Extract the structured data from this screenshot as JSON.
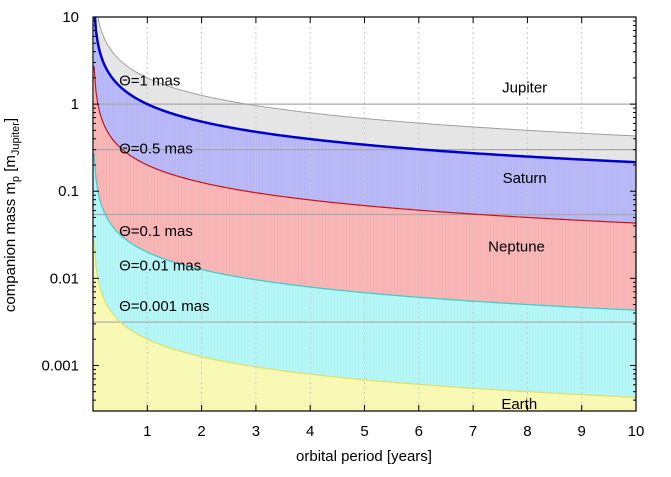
{
  "chart_data": {
    "type": "area",
    "xlabel": "orbital period [years]",
    "ylabel_main": "companion mass m",
    "ylabel_sub_p": "p",
    "ylabel_bracket_open": " [m",
    "ylabel_sub_jupiter": "Jupiter",
    "ylabel_bracket_close": "]",
    "xlim": [
      0,
      10
    ],
    "ylim": [
      0.0003,
      10
    ],
    "yscale": "log",
    "grid": "vertical dotted",
    "x_ticks": [
      1,
      2,
      3,
      4,
      5,
      6,
      7,
      8,
      9,
      10
    ],
    "x_tick_labels": [
      "1",
      "2",
      "3",
      "4",
      "5",
      "6",
      "7",
      "8",
      "9",
      "10"
    ],
    "y_ticks": [
      0.001,
      0.01,
      0.1,
      1,
      10
    ],
    "y_tick_labels": [
      "0.001",
      "0.01",
      "0.1",
      "1",
      "10"
    ],
    "model": "m = k * P^(-2/3)",
    "series": [
      {
        "name": "Θ=1 mas",
        "k": 2.0,
        "fill": "#e4e4e4",
        "stroke": "#a0a0a0",
        "stroke_width": 1
      },
      {
        "name": "Θ=0.5 mas",
        "k": 1.0,
        "fill": "#b3b3f5",
        "stroke": "#0000d0",
        "stroke_width": 2.5
      },
      {
        "name": "Θ=0.1 mas",
        "k": 0.2,
        "fill": "#f8b0b0",
        "stroke": "#d01010",
        "stroke_width": 1.2
      },
      {
        "name": "Θ=0.01 mas",
        "k": 0.02,
        "fill": "#b0f5f5",
        "stroke": "#30d0d0",
        "stroke_width": 1.2
      },
      {
        "name": "Θ=0.001 mas",
        "k": 0.002,
        "fill": "#f8f8b0",
        "stroke": "#e0e060",
        "stroke_width": 1.2
      }
    ],
    "reference_lines": [
      {
        "name": "Jupiter",
        "value": 1.0
      },
      {
        "name": "Saturn",
        "value": 0.3
      },
      {
        "name": "Neptune",
        "value": 0.054
      },
      {
        "name": "Earth",
        "value": 0.00315
      }
    ]
  }
}
